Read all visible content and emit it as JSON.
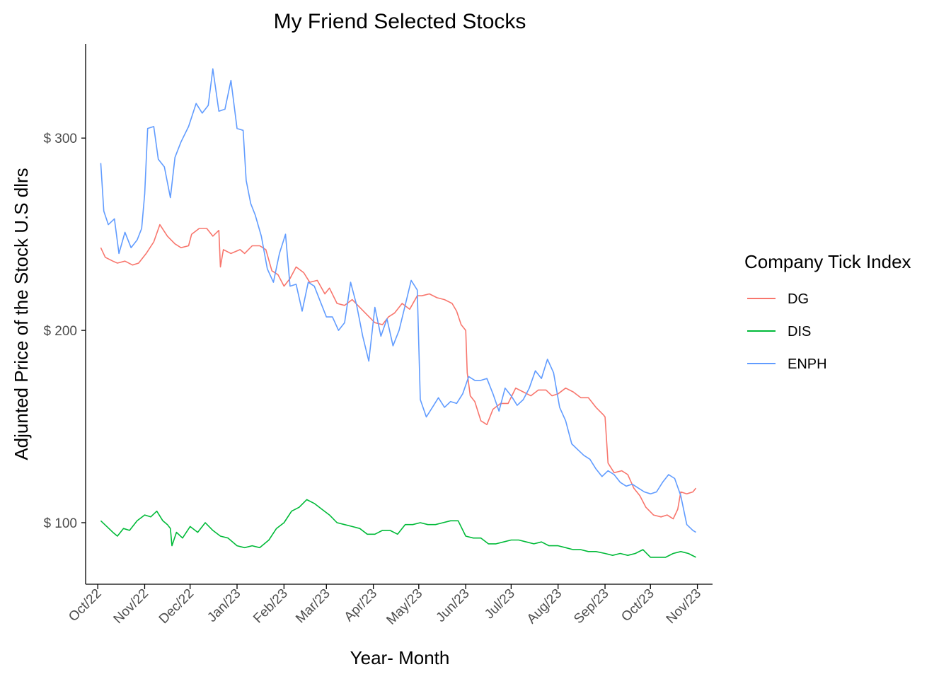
{
  "chart_data": {
    "type": "line",
    "title": "My Friend Selected Stocks",
    "xlabel": "Year- Month",
    "ylabel": "Adjunted Price of the Stock U.S dlrs",
    "x_ticks": [
      "Oct/22",
      "Nov/22",
      "Dec/22",
      "Jan/23",
      "Feb/23",
      "Mar/23",
      "Apr/23",
      "May/23",
      "Jun/23",
      "Jul/23",
      "Aug/23",
      "Sep/23",
      "Oct/23",
      "Nov/23"
    ],
    "x_range": [
      "2022-09-23",
      "2023-11-11"
    ],
    "y_ticks": [
      "$ 100",
      "$ 200",
      "$ 300"
    ],
    "y_tick_values": [
      100,
      200,
      300
    ],
    "ylim": [
      68,
      349
    ],
    "grid": false,
    "legend": {
      "title": "Company Tick Index",
      "position": "right"
    },
    "series": [
      {
        "name": "DG",
        "color": "#F8766D",
        "points": [
          [
            "2022-10-03",
            243
          ],
          [
            "2022-10-06",
            238
          ],
          [
            "2022-10-11",
            236
          ],
          [
            "2022-10-14",
            235
          ],
          [
            "2022-10-19",
            236
          ],
          [
            "2022-10-24",
            234
          ],
          [
            "2022-10-28",
            235
          ],
          [
            "2022-11-02",
            240
          ],
          [
            "2022-11-07",
            246
          ],
          [
            "2022-11-11",
            255
          ],
          [
            "2022-11-16",
            249
          ],
          [
            "2022-11-21",
            245
          ],
          [
            "2022-11-25",
            243
          ],
          [
            "2022-11-30",
            244
          ],
          [
            "2022-12-02",
            250
          ],
          [
            "2022-12-07",
            253
          ],
          [
            "2022-12-12",
            253
          ],
          [
            "2022-12-16",
            249
          ],
          [
            "2022-12-20",
            252
          ],
          [
            "2022-12-21",
            233
          ],
          [
            "2022-12-23",
            242
          ],
          [
            "2022-12-28",
            240
          ],
          [
            "2023-01-03",
            242
          ],
          [
            "2023-01-06",
            240
          ],
          [
            "2023-01-11",
            244
          ],
          [
            "2023-01-16",
            244
          ],
          [
            "2023-01-20",
            242
          ],
          [
            "2023-01-24",
            231
          ],
          [
            "2023-01-28",
            229
          ],
          [
            "2023-02-01",
            223
          ],
          [
            "2023-02-05",
            227
          ],
          [
            "2023-02-09",
            233
          ],
          [
            "2023-02-14",
            230
          ],
          [
            "2023-02-18",
            225
          ],
          [
            "2023-02-23",
            226
          ],
          [
            "2023-02-28",
            219
          ],
          [
            "2023-03-03",
            222
          ],
          [
            "2023-03-08",
            214
          ],
          [
            "2023-03-13",
            213
          ],
          [
            "2023-03-18",
            216
          ],
          [
            "2023-03-23",
            212
          ],
          [
            "2023-03-28",
            208
          ],
          [
            "2023-04-02",
            204
          ],
          [
            "2023-04-07",
            203
          ],
          [
            "2023-04-11",
            207
          ],
          [
            "2023-04-15",
            209
          ],
          [
            "2023-04-20",
            214
          ],
          [
            "2023-04-25",
            211
          ],
          [
            "2023-04-30",
            218
          ],
          [
            "2023-05-03",
            218
          ],
          [
            "2023-05-08",
            219
          ],
          [
            "2023-05-13",
            217
          ],
          [
            "2023-05-18",
            216
          ],
          [
            "2023-05-23",
            214
          ],
          [
            "2023-05-26",
            210
          ],
          [
            "2023-05-29",
            203
          ],
          [
            "2023-06-01",
            200
          ],
          [
            "2023-06-02",
            178
          ],
          [
            "2023-06-04",
            166
          ],
          [
            "2023-06-07",
            163
          ],
          [
            "2023-06-11",
            153
          ],
          [
            "2023-06-15",
            151
          ],
          [
            "2023-06-19",
            159
          ],
          [
            "2023-06-24",
            162
          ],
          [
            "2023-06-29",
            162
          ],
          [
            "2023-07-04",
            170
          ],
          [
            "2023-07-09",
            168
          ],
          [
            "2023-07-14",
            166
          ],
          [
            "2023-07-19",
            169
          ],
          [
            "2023-07-24",
            169
          ],
          [
            "2023-07-28",
            166
          ],
          [
            "2023-08-01",
            167
          ],
          [
            "2023-08-06",
            170
          ],
          [
            "2023-08-11",
            168
          ],
          [
            "2023-08-16",
            165
          ],
          [
            "2023-08-21",
            165
          ],
          [
            "2023-08-26",
            160
          ],
          [
            "2023-08-31",
            156
          ],
          [
            "2023-09-01",
            155
          ],
          [
            "2023-09-03",
            131
          ],
          [
            "2023-09-07",
            126
          ],
          [
            "2023-09-12",
            127
          ],
          [
            "2023-09-16",
            125
          ],
          [
            "2023-09-20",
            118
          ],
          [
            "2023-09-24",
            114
          ],
          [
            "2023-09-28",
            108
          ],
          [
            "2023-10-03",
            104
          ],
          [
            "2023-10-08",
            103
          ],
          [
            "2023-10-12",
            104
          ],
          [
            "2023-10-16",
            102
          ],
          [
            "2023-10-19",
            107
          ],
          [
            "2023-10-21",
            116
          ],
          [
            "2023-10-25",
            115
          ],
          [
            "2023-10-29",
            116
          ],
          [
            "2023-10-31",
            118
          ]
        ]
      },
      {
        "name": "DIS",
        "color": "#00BA38",
        "points": [
          [
            "2022-10-03",
            101
          ],
          [
            "2022-10-07",
            98
          ],
          [
            "2022-10-11",
            95
          ],
          [
            "2022-10-14",
            93
          ],
          [
            "2022-10-18",
            97
          ],
          [
            "2022-10-22",
            96
          ],
          [
            "2022-10-27",
            101
          ],
          [
            "2022-11-01",
            104
          ],
          [
            "2022-11-05",
            103
          ],
          [
            "2022-11-09",
            106
          ],
          [
            "2022-11-13",
            101
          ],
          [
            "2022-11-16",
            99
          ],
          [
            "2022-11-18",
            97
          ],
          [
            "2022-11-19",
            88
          ],
          [
            "2022-11-22",
            95
          ],
          [
            "2022-11-26",
            92
          ],
          [
            "2022-12-01",
            98
          ],
          [
            "2022-12-06",
            95
          ],
          [
            "2022-12-11",
            100
          ],
          [
            "2022-12-16",
            96
          ],
          [
            "2022-12-21",
            93
          ],
          [
            "2022-12-26",
            92
          ],
          [
            "2023-01-01",
            88
          ],
          [
            "2023-01-06",
            87
          ],
          [
            "2023-01-11",
            88
          ],
          [
            "2023-01-16",
            87
          ],
          [
            "2023-01-22",
            91
          ],
          [
            "2023-01-27",
            97
          ],
          [
            "2023-02-01",
            100
          ],
          [
            "2023-02-06",
            106
          ],
          [
            "2023-02-11",
            108
          ],
          [
            "2023-02-16",
            112
          ],
          [
            "2023-02-21",
            110
          ],
          [
            "2023-02-26",
            107
          ],
          [
            "2023-03-03",
            104
          ],
          [
            "2023-03-08",
            100
          ],
          [
            "2023-03-13",
            99
          ],
          [
            "2023-03-18",
            98
          ],
          [
            "2023-03-23",
            97
          ],
          [
            "2023-03-28",
            94
          ],
          [
            "2023-04-02",
            94
          ],
          [
            "2023-04-07",
            96
          ],
          [
            "2023-04-12",
            96
          ],
          [
            "2023-04-17",
            94
          ],
          [
            "2023-04-22",
            99
          ],
          [
            "2023-04-27",
            99
          ],
          [
            "2023-05-02",
            100
          ],
          [
            "2023-05-07",
            99
          ],
          [
            "2023-05-12",
            99
          ],
          [
            "2023-05-17",
            100
          ],
          [
            "2023-05-22",
            101
          ],
          [
            "2023-05-27",
            101
          ],
          [
            "2023-06-01",
            93
          ],
          [
            "2023-06-06",
            92
          ],
          [
            "2023-06-11",
            92
          ],
          [
            "2023-06-16",
            89
          ],
          [
            "2023-06-21",
            89
          ],
          [
            "2023-06-26",
            90
          ],
          [
            "2023-07-01",
            91
          ],
          [
            "2023-07-06",
            91
          ],
          [
            "2023-07-11",
            90
          ],
          [
            "2023-07-16",
            89
          ],
          [
            "2023-07-21",
            90
          ],
          [
            "2023-07-26",
            88
          ],
          [
            "2023-08-01",
            88
          ],
          [
            "2023-08-06",
            87
          ],
          [
            "2023-08-11",
            86
          ],
          [
            "2023-08-16",
            86
          ],
          [
            "2023-08-21",
            85
          ],
          [
            "2023-08-26",
            85
          ],
          [
            "2023-09-01",
            84
          ],
          [
            "2023-09-06",
            83
          ],
          [
            "2023-09-11",
            84
          ],
          [
            "2023-09-16",
            83
          ],
          [
            "2023-09-21",
            84
          ],
          [
            "2023-09-26",
            86
          ],
          [
            "2023-10-01",
            82
          ],
          [
            "2023-10-06",
            82
          ],
          [
            "2023-10-11",
            82
          ],
          [
            "2023-10-16",
            84
          ],
          [
            "2023-10-21",
            85
          ],
          [
            "2023-10-26",
            84
          ],
          [
            "2023-10-31",
            82
          ]
        ]
      },
      {
        "name": "ENPH",
        "color": "#619CFF",
        "points": [
          [
            "2022-10-03",
            287
          ],
          [
            "2022-10-05",
            262
          ],
          [
            "2022-10-08",
            255
          ],
          [
            "2022-10-12",
            258
          ],
          [
            "2022-10-15",
            240
          ],
          [
            "2022-10-19",
            251
          ],
          [
            "2022-10-23",
            243
          ],
          [
            "2022-10-27",
            247
          ],
          [
            "2022-10-30",
            253
          ],
          [
            "2022-11-01",
            271
          ],
          [
            "2022-11-03",
            305
          ],
          [
            "2022-11-07",
            306
          ],
          [
            "2022-11-10",
            289
          ],
          [
            "2022-11-14",
            285
          ],
          [
            "2022-11-18",
            269
          ],
          [
            "2022-11-21",
            290
          ],
          [
            "2022-11-25",
            298
          ],
          [
            "2022-11-30",
            306
          ],
          [
            "2022-12-05",
            318
          ],
          [
            "2022-12-09",
            313
          ],
          [
            "2022-12-13",
            317
          ],
          [
            "2022-12-16",
            336
          ],
          [
            "2022-12-20",
            314
          ],
          [
            "2022-12-24",
            315
          ],
          [
            "2022-12-28",
            330
          ],
          [
            "2023-01-01",
            305
          ],
          [
            "2023-01-05",
            304
          ],
          [
            "2023-01-07",
            278
          ],
          [
            "2023-01-10",
            266
          ],
          [
            "2023-01-13",
            260
          ],
          [
            "2023-01-17",
            249
          ],
          [
            "2023-01-21",
            232
          ],
          [
            "2023-01-25",
            225
          ],
          [
            "2023-01-29",
            240
          ],
          [
            "2023-02-02",
            250
          ],
          [
            "2023-02-05",
            223
          ],
          [
            "2023-02-09",
            224
          ],
          [
            "2023-02-13",
            210
          ],
          [
            "2023-02-17",
            225
          ],
          [
            "2023-02-21",
            223
          ],
          [
            "2023-02-25",
            215
          ],
          [
            "2023-03-01",
            207
          ],
          [
            "2023-03-05",
            207
          ],
          [
            "2023-03-09",
            200
          ],
          [
            "2023-03-13",
            204
          ],
          [
            "2023-03-17",
            225
          ],
          [
            "2023-03-21",
            213
          ],
          [
            "2023-03-25",
            197
          ],
          [
            "2023-03-29",
            184
          ],
          [
            "2023-04-02",
            212
          ],
          [
            "2023-04-06",
            197
          ],
          [
            "2023-04-10",
            206
          ],
          [
            "2023-04-14",
            192
          ],
          [
            "2023-04-18",
            200
          ],
          [
            "2023-04-22",
            213
          ],
          [
            "2023-04-26",
            226
          ],
          [
            "2023-04-30",
            221
          ],
          [
            "2023-05-02",
            164
          ],
          [
            "2023-05-06",
            155
          ],
          [
            "2023-05-10",
            160
          ],
          [
            "2023-05-14",
            165
          ],
          [
            "2023-05-18",
            160
          ],
          [
            "2023-05-22",
            163
          ],
          [
            "2023-05-26",
            162
          ],
          [
            "2023-05-30",
            167
          ],
          [
            "2023-06-03",
            176
          ],
          [
            "2023-06-07",
            174
          ],
          [
            "2023-06-11",
            174
          ],
          [
            "2023-06-15",
            175
          ],
          [
            "2023-06-19",
            167
          ],
          [
            "2023-06-23",
            158
          ],
          [
            "2023-06-27",
            170
          ],
          [
            "2023-07-01",
            166
          ],
          [
            "2023-07-05",
            161
          ],
          [
            "2023-07-09",
            164
          ],
          [
            "2023-07-13",
            170
          ],
          [
            "2023-07-17",
            179
          ],
          [
            "2023-07-21",
            175
          ],
          [
            "2023-07-25",
            185
          ],
          [
            "2023-07-29",
            178
          ],
          [
            "2023-08-02",
            160
          ],
          [
            "2023-08-06",
            153
          ],
          [
            "2023-08-10",
            141
          ],
          [
            "2023-08-14",
            138
          ],
          [
            "2023-08-18",
            135
          ],
          [
            "2023-08-22",
            133
          ],
          [
            "2023-08-26",
            128
          ],
          [
            "2023-08-30",
            124
          ],
          [
            "2023-09-03",
            127
          ],
          [
            "2023-09-07",
            125
          ],
          [
            "2023-09-11",
            121
          ],
          [
            "2023-09-15",
            119
          ],
          [
            "2023-09-19",
            120
          ],
          [
            "2023-09-23",
            118
          ],
          [
            "2023-09-27",
            116
          ],
          [
            "2023-10-01",
            115
          ],
          [
            "2023-10-05",
            116
          ],
          [
            "2023-10-09",
            121
          ],
          [
            "2023-10-13",
            125
          ],
          [
            "2023-10-17",
            123
          ],
          [
            "2023-10-21",
            114
          ],
          [
            "2023-10-25",
            99
          ],
          [
            "2023-10-29",
            96
          ],
          [
            "2023-10-31",
            95
          ]
        ]
      }
    ]
  }
}
